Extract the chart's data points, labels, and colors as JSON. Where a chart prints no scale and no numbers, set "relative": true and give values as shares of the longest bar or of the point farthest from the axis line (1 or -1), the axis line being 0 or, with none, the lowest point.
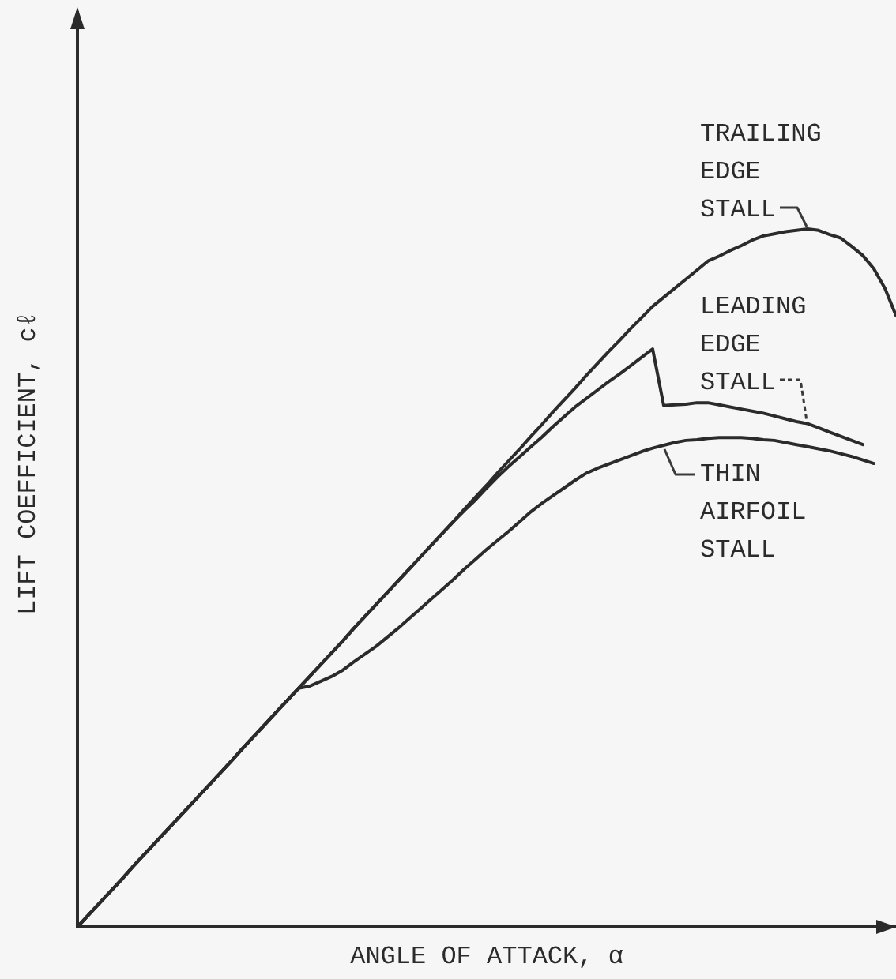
{
  "chart_data": {
    "type": "line",
    "relative": true,
    "marker": "none",
    "xlabel": "ANGLE OF ATTACK, α",
    "ylabel": "LIFT COEFFICIENT, cℓ",
    "categories": [
      null,
      null,
      null,
      null,
      null,
      null,
      null,
      null,
      null,
      null,
      null,
      null,
      null,
      null,
      null,
      null,
      null,
      null,
      null,
      null,
      null,
      null,
      null,
      null,
      null,
      null,
      null,
      null,
      null,
      null,
      null,
      null,
      null,
      null,
      null,
      null,
      null,
      null,
      null,
      null,
      null,
      null,
      null,
      null,
      null,
      null,
      null,
      null,
      null,
      null,
      null,
      null,
      null,
      null,
      null,
      null,
      null,
      null,
      null,
      null,
      null,
      null,
      null,
      null,
      null,
      null,
      null,
      null,
      null,
      null,
      null,
      null,
      null,
      null,
      null
    ],
    "series": [
      {
        "name": "TRAILING EDGE STALL",
        "color": "#2b2b2b",
        "values": [
          0,
          0.017,
          0.034,
          0.051,
          0.068,
          0.086,
          0.103,
          0.12,
          0.137,
          0.154,
          0.171,
          0.188,
          0.205,
          0.222,
          0.239,
          0.257,
          0.274,
          0.291,
          0.308,
          0.325,
          0.342,
          0.359,
          0.376,
          0.393,
          0.41,
          0.428,
          0.445,
          0.462,
          0.479,
          0.496,
          0.513,
          0.53,
          0.547,
          0.564,
          0.581,
          0.599,
          0.616,
          0.633,
          0.651,
          0.668,
          0.685,
          0.703,
          0.72,
          0.738,
          0.755,
          0.772,
          0.79,
          0.807,
          0.824,
          0.84,
          0.857,
          0.873,
          0.889,
          0.902,
          0.915,
          0.928,
          0.941,
          0.954,
          0.961,
          0.969,
          0.976,
          0.984,
          0.99,
          0.993,
          0.996,
          0.998,
          1,
          0.998,
          0.992,
          0.987,
          0.975,
          0.962,
          0.943,
          0.915,
          0.876
        ]
      },
      {
        "name": "LEADING EDGE STALL",
        "color": "#2b2b2b",
        "values": [
          0,
          0.017,
          0.034,
          0.051,
          0.068,
          0.086,
          0.103,
          0.12,
          0.137,
          0.154,
          0.171,
          0.188,
          0.205,
          0.222,
          0.239,
          0.257,
          0.274,
          0.291,
          0.308,
          0.325,
          0.342,
          0.359,
          0.376,
          0.393,
          0.41,
          0.428,
          0.445,
          0.462,
          0.479,
          0.496,
          0.513,
          0.53,
          0.547,
          0.564,
          0.581,
          0.597,
          0.612,
          0.629,
          0.645,
          0.66,
          0.674,
          0.688,
          0.702,
          0.717,
          0.731,
          0.745,
          0.757,
          0.769,
          0.781,
          0.792,
          0.804,
          0.816,
          0.828,
          0.747,
          0.748,
          0.749,
          0.751,
          0.751,
          0.748,
          0.745,
          0.742,
          0.739,
          0.736,
          0.732,
          0.728,
          0.724,
          0.721,
          0.715,
          0.709,
          0.703,
          0.697,
          0.691,
          null,
          null,
          null
        ]
      },
      {
        "name": "THIN AIRFOIL STALL",
        "color": "#2b2b2b",
        "values": [
          0,
          0.017,
          0.034,
          0.051,
          0.068,
          0.086,
          0.103,
          0.12,
          0.137,
          0.154,
          0.171,
          0.188,
          0.205,
          0.222,
          0.239,
          0.257,
          0.274,
          0.291,
          0.308,
          0.325,
          0.342,
          0.345,
          0.352,
          0.359,
          0.368,
          0.38,
          0.391,
          0.402,
          0.415,
          0.428,
          0.442,
          0.456,
          0.47,
          0.484,
          0.498,
          0.513,
          0.527,
          0.541,
          0.554,
          0.567,
          0.581,
          0.595,
          0.607,
          0.618,
          0.629,
          0.64,
          0.65,
          0.657,
          0.663,
          0.669,
          0.675,
          0.681,
          0.686,
          0.69,
          0.694,
          0.697,
          0.698,
          0.7,
          0.701,
          0.701,
          0.701,
          0.7,
          0.698,
          0.697,
          0.694,
          0.691,
          0.688,
          0.685,
          0.682,
          0.678,
          0.674,
          0.669,
          0.664,
          null,
          null
        ]
      }
    ]
  }
}
